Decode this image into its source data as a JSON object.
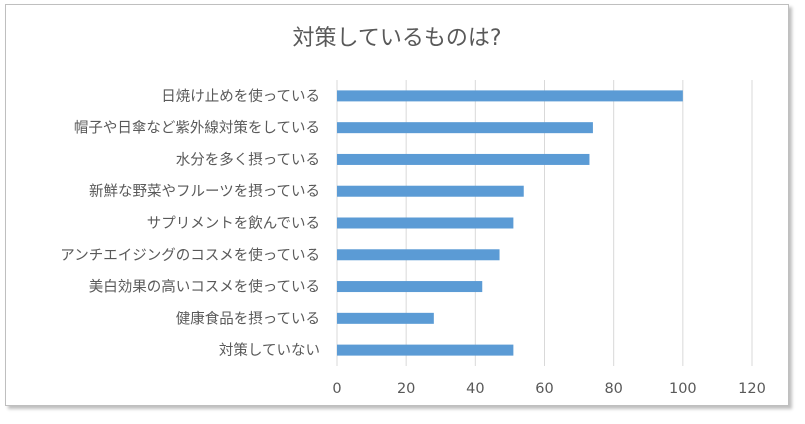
{
  "chart_data": {
    "type": "bar",
    "orientation": "horizontal",
    "title": "対策しているものは?",
    "categories": [
      "日焼け止めを使っている",
      "帽子や日傘など紫外線対策をしている",
      "水分を多く摂っている",
      "新鮮な野菜やフルーツを摂っている",
      "サプリメントを飲んでいる",
      "アンチエイジングのコスメを使っている",
      "美白効果の高いコスメを使っている",
      "健康食品を摂っている",
      "対策していない"
    ],
    "values": [
      100,
      74,
      73,
      54,
      51,
      47,
      42,
      28,
      51
    ],
    "xlim": [
      0,
      120
    ],
    "xticks": [
      "0",
      "20",
      "40",
      "60",
      "80",
      "100",
      "120"
    ],
    "xlabel": "",
    "ylabel": "",
    "grid": true,
    "legend": "none",
    "bar_color": "#5b9bd5"
  }
}
